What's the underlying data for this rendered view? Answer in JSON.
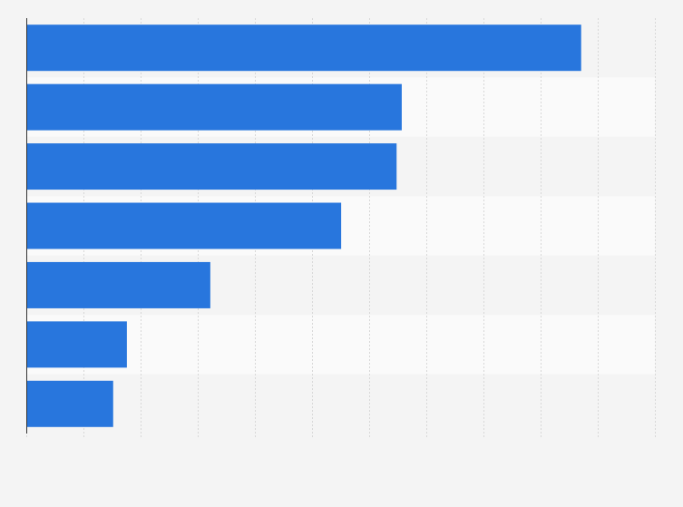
{
  "chart_data": {
    "type": "bar",
    "orientation": "horizontal",
    "categories": [
      null,
      null,
      null,
      null,
      null,
      null,
      null
    ],
    "values": [
      9.71,
      6.57,
      6.48,
      5.51,
      3.22,
      1.76,
      1.52
    ],
    "color": "#2876dd",
    "xlim": [
      0,
      11
    ],
    "xticks": [
      0,
      1,
      2,
      3,
      4,
      5,
      6,
      7,
      8,
      9,
      10,
      11
    ],
    "grid": true
  }
}
